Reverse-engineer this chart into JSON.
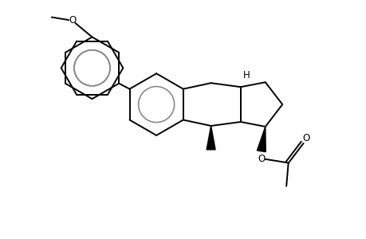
{
  "background": "#ffffff",
  "line_color": "#000000",
  "line_width": 1.4,
  "figsize": [
    4.6,
    3.0
  ],
  "dpi": 100,
  "aromatic_ring_color": "#888888",
  "wedge_color": "#000000",
  "label_H": "H",
  "label_O_methoxy": "O",
  "label_O_acetate": "O",
  "label_O_carbonyl": "O",
  "xlim": [
    0.0,
    9.2
  ],
  "ylim": [
    0.5,
    6.5
  ]
}
